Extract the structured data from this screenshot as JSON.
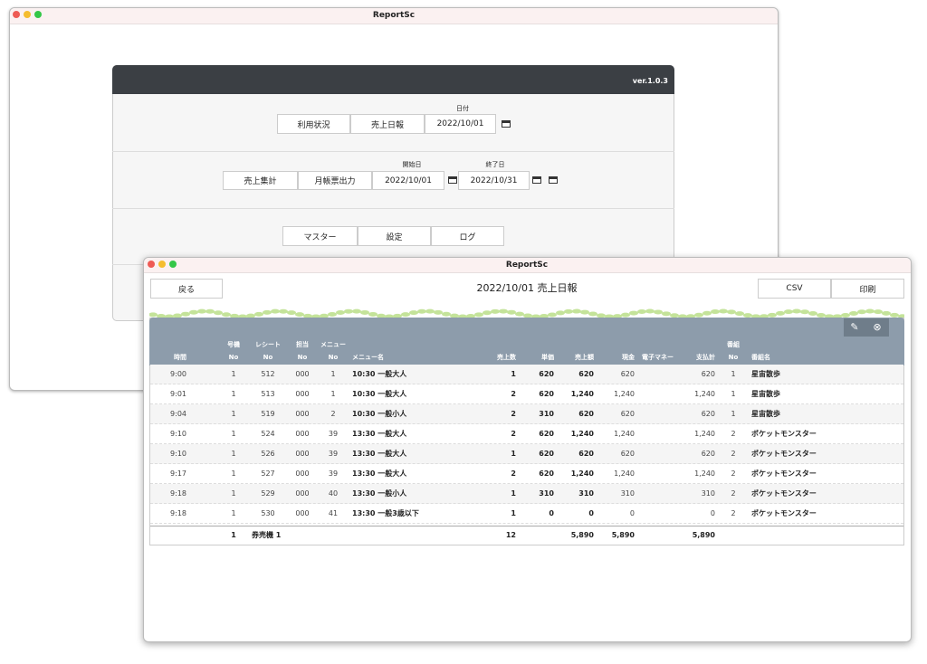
{
  "back_window": {
    "title": "ReportSc",
    "version": "ver.1.0.3",
    "date_label": "日付",
    "row1": [
      "利用状況",
      "売上日報",
      "2022/10/01"
    ],
    "start_label": "開始日",
    "end_label": "終了日",
    "row2": [
      "売上集計",
      "月帳票出力",
      "2022/10/01",
      "2022/10/31"
    ],
    "row3": [
      "マスター",
      "設定",
      "ログ"
    ]
  },
  "front_window": {
    "title": "ReportSc",
    "back_button": "戻る",
    "heading": "2022/10/01 売上日報",
    "csv_button": "CSV",
    "print_button": "印刷"
  },
  "table": {
    "columns": [
      [
        "時間"
      ],
      [
        "号機",
        "No"
      ],
      [
        "レシート",
        "No"
      ],
      [
        "担当",
        "No"
      ],
      [
        "メニュー",
        "No"
      ],
      [
        "メニュー名"
      ],
      [
        "売上数"
      ],
      [
        "単価"
      ],
      [
        "売上額"
      ],
      [
        "現金"
      ],
      [
        "電子マネー"
      ],
      [
        "支払計"
      ],
      [
        "番組",
        "No"
      ],
      [
        "番組名"
      ]
    ],
    "rows": [
      [
        "9:00",
        "1",
        "512",
        "000",
        "1",
        "10:30 一般大人",
        "1",
        "620",
        "620",
        "620",
        null,
        "620",
        "1",
        "星宙散歩"
      ],
      [
        "9:01",
        "1",
        "513",
        "000",
        "1",
        "10:30 一般大人",
        "2",
        "620",
        "1,240",
        "1,240",
        null,
        "1,240",
        "1",
        "星宙散歩"
      ],
      [
        "9:04",
        "1",
        "519",
        "000",
        "2",
        "10:30 一般小人",
        "2",
        "310",
        "620",
        "620",
        null,
        "620",
        "1",
        "星宙散歩"
      ],
      [
        "9:10",
        "1",
        "524",
        "000",
        "39",
        "13:30 一般大人",
        "2",
        "620",
        "1,240",
        "1,240",
        null,
        "1,240",
        "2",
        "ポケットモンスター"
      ],
      [
        "9:10",
        "1",
        "526",
        "000",
        "39",
        "13:30 一般大人",
        "1",
        "620",
        "620",
        "620",
        null,
        "620",
        "2",
        "ポケットモンスター"
      ],
      [
        "9:17",
        "1",
        "527",
        "000",
        "39",
        "13:30 一般大人",
        "2",
        "620",
        "1,240",
        "1,240",
        null,
        "1,240",
        "2",
        "ポケットモンスター"
      ],
      [
        "9:18",
        "1",
        "529",
        "000",
        "40",
        "13:30 一般小人",
        "1",
        "310",
        "310",
        "310",
        null,
        "310",
        "2",
        "ポケットモンスター"
      ],
      [
        "9:18",
        "1",
        "530",
        "000",
        "41",
        "13:30 一般3歳以下",
        "1",
        "0",
        "0",
        "0",
        null,
        "0",
        "2",
        "ポケットモンスター"
      ]
    ],
    "total": [
      null,
      "1",
      "券売機 1",
      null,
      null,
      null,
      "12",
      null,
      "5,890",
      "5,890",
      null,
      "5,890",
      null,
      null
    ]
  }
}
